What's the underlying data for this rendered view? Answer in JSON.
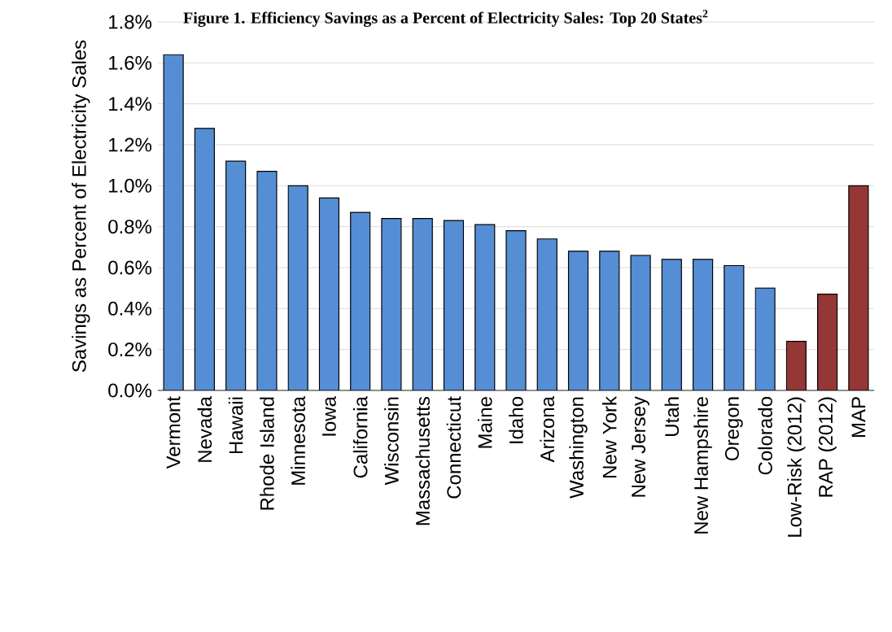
{
  "chart_data": {
    "type": "bar",
    "title": "Figure 1.  Efficiency Savings as a Percent of Electricity Sales: Top 20 States$^{2}$",
    "ylabel": "Savings as  Percent of Electricity Sales",
    "categories": [
      "Vermont",
      "Nevada",
      "Hawaii",
      "Rhode Island",
      "Minnesota",
      "Iowa",
      "California",
      "Wisconsin",
      "Massachusetts",
      "Connecticut",
      "Maine",
      "Idaho",
      "Arizona",
      "Washington",
      "New York",
      "New Jersey",
      "Utah",
      "New Hampshire",
      "Oregon",
      "Colorado",
      "Low-Risk (2012)",
      "RAP (2012)",
      "MAP"
    ],
    "values": [
      1.64,
      1.28,
      1.12,
      1.07,
      1.0,
      0.94,
      0.87,
      0.84,
      0.84,
      0.83,
      0.81,
      0.78,
      0.74,
      0.68,
      0.68,
      0.66,
      0.64,
      0.64,
      0.61,
      0.5,
      0.24,
      0.47,
      1.0
    ],
    "colors": [
      "#558ed5",
      "#558ed5",
      "#558ed5",
      "#558ed5",
      "#558ed5",
      "#558ed5",
      "#558ed5",
      "#558ed5",
      "#558ed5",
      "#558ed5",
      "#558ed5",
      "#558ed5",
      "#558ed5",
      "#558ed5",
      "#558ed5",
      "#558ed5",
      "#558ed5",
      "#558ed5",
      "#558ed5",
      "#558ed5",
      "#953735",
      "#953735",
      "#953735"
    ],
    "ylim": [
      0,
      1.8
    ],
    "yticks": [
      {
        "value": 0,
        "label": "0.0%"
      },
      {
        "value": 0.2,
        "label": "0.2%"
      },
      {
        "value": 0.4,
        "label": "0.4%"
      },
      {
        "value": 0.6,
        "label": "0.6%"
      },
      {
        "value": 0.8,
        "label": "0.8%"
      },
      {
        "value": 1.0,
        "label": "1.0%"
      },
      {
        "value": 1.2,
        "label": "1.2%"
      },
      {
        "value": 1.4,
        "label": "1.4%"
      },
      {
        "value": 1.6,
        "label": "1.6%"
      },
      {
        "value": 1.8,
        "label": "1.8%"
      }
    ],
    "grid": "y"
  }
}
